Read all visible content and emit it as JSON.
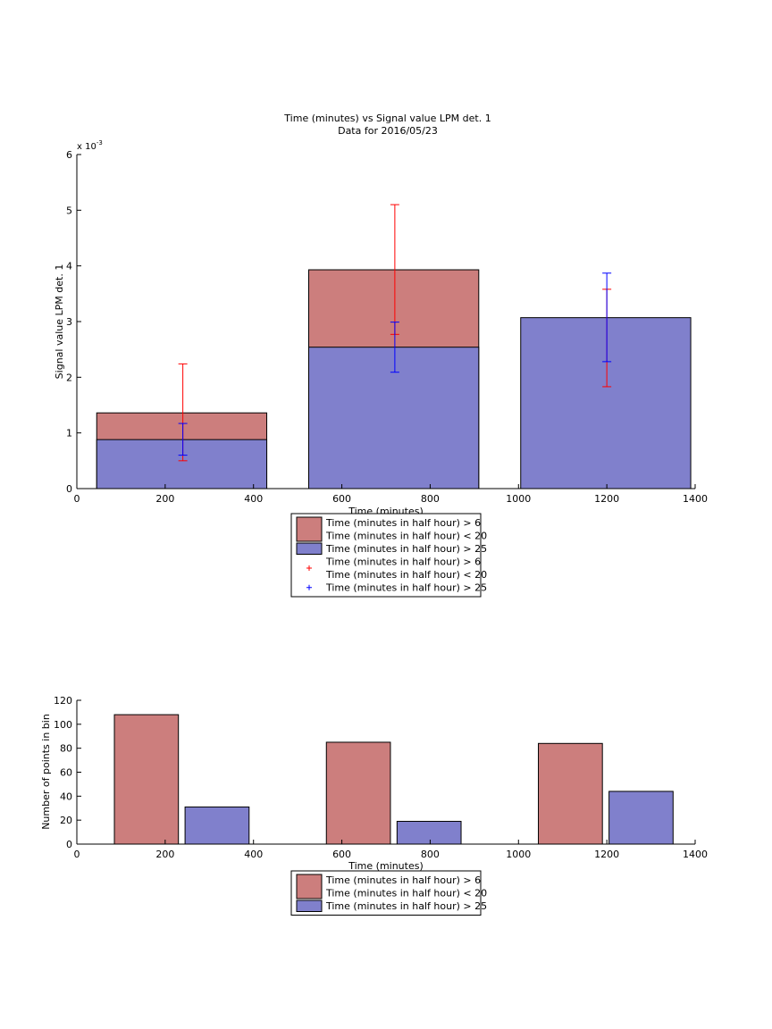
{
  "chart_data": [
    {
      "type": "bar",
      "title": "Time (minutes) vs Signal value LPM det. 1",
      "subtitle": "Data for 2016/05/23",
      "xlabel": "Time (minutes)",
      "ylabel": "Signal value LPM det. 1",
      "y_exponent_label": "x 10",
      "y_exponent_power": "-3",
      "xlim": [
        0,
        1400
      ],
      "ylim": [
        0,
        0.006
      ],
      "x_ticks": [
        "0",
        "200",
        "400",
        "600",
        "800",
        "1000",
        "1200",
        "1400"
      ],
      "y_ticks": [
        "0",
        "1",
        "2",
        "3",
        "4",
        "5",
        "6"
      ],
      "grid": false,
      "legend_position": "below",
      "bars": [
        {
          "x_start": 45,
          "x_end": 430,
          "series": "Time (minutes in half hour) > 6\nTime (minutes in half hour) < 20",
          "value": 0.00136
        },
        {
          "x_start": 45,
          "x_end": 430,
          "series": "Time (minutes in half hour) > 25",
          "value": 0.00088
        },
        {
          "x_start": 525,
          "x_end": 910,
          "series": "Time (minutes in half hour) > 6\nTime (minutes in half hour) < 20",
          "value": 0.00393
        },
        {
          "x_start": 525,
          "x_end": 910,
          "series": "Time (minutes in half hour) > 25",
          "value": 0.00254
        },
        {
          "x_start": 1005,
          "x_end": 1390,
          "series": "Time (minutes in half hour) > 25",
          "value": 0.00307
        }
      ],
      "errorbars": [
        {
          "series": "Time (minutes in half hour) > 6\nTime (minutes in half hour) < 20",
          "x": 240,
          "low": 0.0005,
          "high": 0.00224
        },
        {
          "series": "Time (minutes in half hour) > 25",
          "x": 240,
          "low": 0.0006,
          "high": 0.00117
        },
        {
          "series": "Time (minutes in half hour) > 6\nTime (minutes in half hour) < 20",
          "x": 720,
          "low": 0.00277,
          "high": 0.0051
        },
        {
          "series": "Time (minutes in half hour) > 25",
          "x": 720,
          "low": 0.00209,
          "high": 0.00299
        },
        {
          "series": "Time (minutes in half hour) > 6\nTime (minutes in half hour) < 20",
          "x": 1200,
          "low": 0.00183,
          "high": 0.00358
        },
        {
          "series": "Time (minutes in half hour) > 25",
          "x": 1200,
          "low": 0.00228,
          "high": 0.00387
        }
      ],
      "legend": [
        {
          "kind": "bar",
          "color": "#cc7e7d",
          "lines": [
            "Time (minutes in half hour) > 6",
            "Time (minutes in half hour) < 20"
          ]
        },
        {
          "kind": "bar",
          "color": "#8080cc",
          "lines": [
            "Time (minutes in half hour) > 25"
          ]
        },
        {
          "kind": "marker",
          "color": "#ff0000",
          "lines": [
            "Time (minutes in half hour) > 6",
            "Time (minutes in half hour) < 20"
          ]
        },
        {
          "kind": "marker",
          "color": "#0000ff",
          "lines": [
            "Time (minutes in half hour) > 25"
          ]
        }
      ]
    },
    {
      "type": "bar",
      "title": "",
      "xlabel": "Time (minutes)",
      "ylabel": "Number of points in bin",
      "xlim": [
        0,
        1400
      ],
      "ylim": [
        0,
        120
      ],
      "x_ticks": [
        "0",
        "200",
        "400",
        "600",
        "800",
        "1000",
        "1200",
        "1400"
      ],
      "y_ticks": [
        "0",
        "20",
        "40",
        "60",
        "80",
        "100",
        "120"
      ],
      "grid": false,
      "legend_position": "below",
      "bars": [
        {
          "x_start": 85,
          "x_end": 230,
          "series": "Time (minutes in half hour) > 6\nTime (minutes in half hour) < 20",
          "value": 108
        },
        {
          "x_start": 245,
          "x_end": 390,
          "series": "Time (minutes in half hour) > 25",
          "value": 31
        },
        {
          "x_start": 565,
          "x_end": 710,
          "series": "Time (minutes in half hour) > 6\nTime (minutes in half hour) < 20",
          "value": 85
        },
        {
          "x_start": 725,
          "x_end": 870,
          "series": "Time (minutes in half hour) > 25",
          "value": 19
        },
        {
          "x_start": 1045,
          "x_end": 1190,
          "series": "Time (minutes in half hour) > 6\nTime (minutes in half hour) < 20",
          "value": 84
        },
        {
          "x_start": 1205,
          "x_end": 1350,
          "series": "Time (minutes in half hour) > 25",
          "value": 44
        }
      ],
      "legend": [
        {
          "kind": "bar",
          "color": "#cc7e7d",
          "lines": [
            "Time (minutes in half hour) > 6",
            "Time (minutes in half hour) < 20"
          ]
        },
        {
          "kind": "bar",
          "color": "#8080cc",
          "lines": [
            "Time (minutes in half hour) > 25"
          ]
        }
      ]
    }
  ]
}
